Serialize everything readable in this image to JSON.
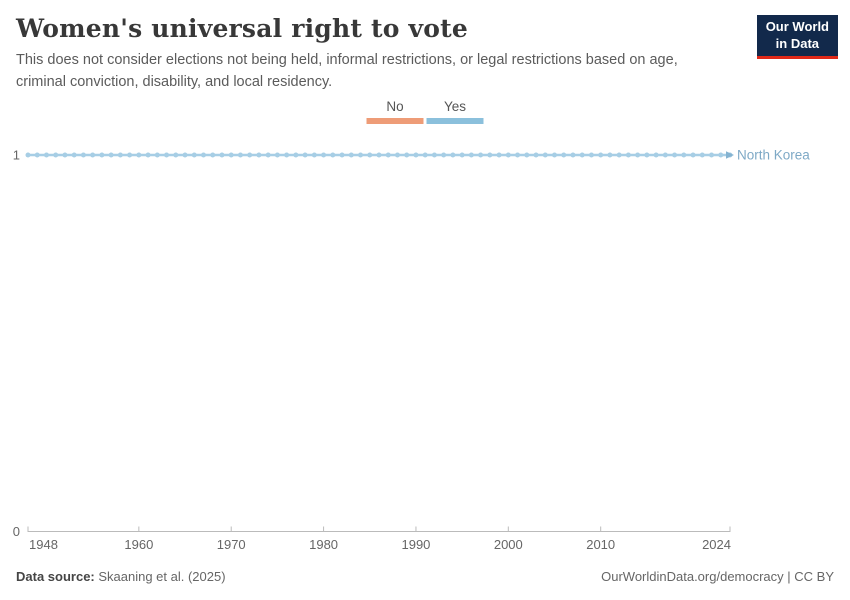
{
  "header": {
    "title": "Women's universal right to vote",
    "subtitle": "This does not consider elections not being held, informal restrictions, or legal restrictions based on age, criminal conviction, disability, and local residency."
  },
  "logo": {
    "line1": "Our World",
    "line2": "in Data",
    "bg_color": "#12294b",
    "accent_color": "#e02818"
  },
  "legend": {
    "items": [
      {
        "label": "No",
        "color": "#ee9c77"
      },
      {
        "label": "Yes",
        "color": "#8bc0dc"
      }
    ]
  },
  "chart_data": {
    "type": "line",
    "title": "Women's universal right to vote",
    "entity_label": "North Korea",
    "xlim": [
      1948,
      2024
    ],
    "ylim": [
      0,
      1
    ],
    "x_ticks": [
      1948,
      1960,
      1970,
      1980,
      1990,
      2000,
      2010,
      2024
    ],
    "y_ticks": [
      1,
      0
    ],
    "grid": false,
    "legend_position": "top-center",
    "value_meaning": {
      "0": "No",
      "1": "Yes"
    },
    "series": [
      {
        "name": "North Korea",
        "year_start": 1948,
        "year_end": 2024,
        "step": 1,
        "constant_value": 1,
        "category": "Yes",
        "line_color": "#a7cee5",
        "marker": "circle",
        "arrow_color": "#85b3d1",
        "label_color": "#7ea9c6"
      }
    ],
    "axis_color": "#bbbbbb",
    "tick_label_color": "#666666"
  },
  "footer": {
    "source_label": "Data source:",
    "source_value": " Skaaning et al. (2025)",
    "link_text": "OurWorldinData.org/democracy | CC BY"
  }
}
